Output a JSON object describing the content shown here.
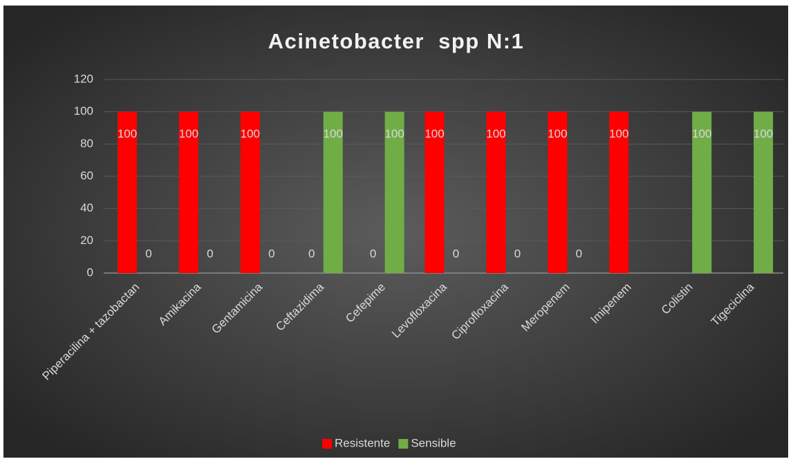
{
  "chart_data": {
    "type": "bar",
    "title": "Acinetobacter  spp N:1",
    "categories": [
      "Piperacilina + tazobactan",
      "Amikacina",
      "Gentamicina",
      "Ceftazidima",
      "Cefepime",
      "Levofloxacina",
      "Ciprofloxacina",
      "Meropenem",
      "Imipenem",
      "Colistin",
      "Tigeciclina"
    ],
    "series": [
      {
        "name": "Resistente",
        "color": "#ff0000",
        "values": [
          100,
          100,
          100,
          0,
          0,
          100,
          100,
          100,
          100,
          null,
          null
        ]
      },
      {
        "name": "Sensible",
        "color": "#70ad47",
        "values": [
          0,
          0,
          0,
          100,
          100,
          0,
          0,
          0,
          null,
          100,
          100
        ]
      }
    ],
    "ylim": [
      0,
      120
    ],
    "yticks": [
      0,
      20,
      40,
      60,
      80,
      100,
      120
    ],
    "grid": true,
    "legend": "bottom"
  }
}
